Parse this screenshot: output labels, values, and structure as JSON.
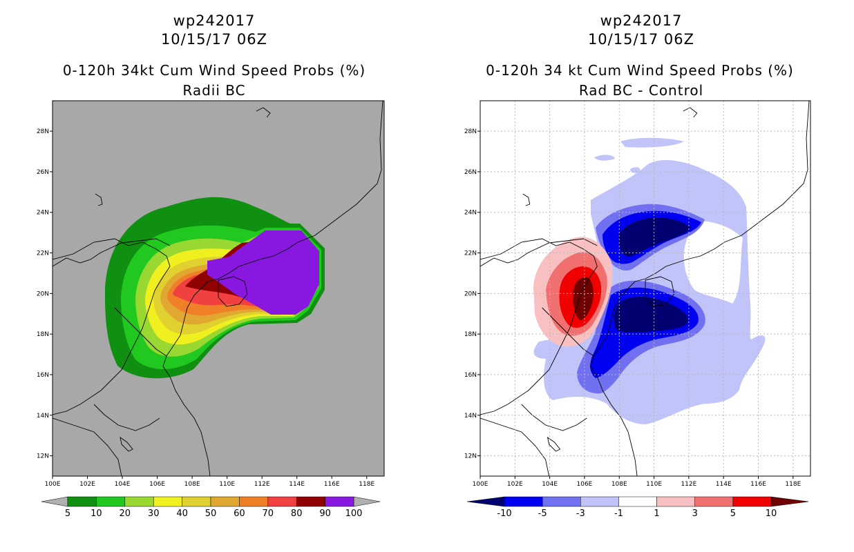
{
  "left_panel": {
    "title_line1": "wp242017",
    "title_line2": "10/15/17 06Z",
    "title_line3": "0-120h 34kt Cum Wind Speed Probs (%)",
    "subtitle": "Radii BC",
    "colorbar": {
      "labels": [
        "5",
        "10",
        "20",
        "30",
        "40",
        "50",
        "60",
        "70",
        "80",
        "90",
        "100"
      ],
      "colors": [
        "#109010",
        "#20c820",
        "#98d830",
        "#f0f020",
        "#e0d030",
        "#e0a830",
        "#f08028",
        "#f04040",
        "#900000",
        "#8818e0"
      ],
      "end_color": "#b0b0b0"
    }
  },
  "right_panel": {
    "title_line1": "wp242017",
    "title_line2": "10/15/17 06Z",
    "title_line3": "0-120h 34 kt Cum Wind Speed Probs (%)",
    "subtitle": "Rad BC - Control",
    "colorbar": {
      "labels": [
        "-10",
        "-5",
        "-3",
        "-1",
        "1",
        "3",
        "5",
        "10"
      ],
      "colors": [
        "#0000f0",
        "#7070f0",
        "#c0c4f8",
        "#ffffff",
        "#f8c0c0",
        "#f07070",
        "#f00000"
      ],
      "end_left": "#000070",
      "end_right": "#700000"
    }
  },
  "axes": {
    "lon_ticks": [
      "100E",
      "102E",
      "104E",
      "106E",
      "108E",
      "110E",
      "112E",
      "114E",
      "116E",
      "118E"
    ],
    "lat_ticks": [
      "28N",
      "26N",
      "24N",
      "22N",
      "20N",
      "18N",
      "16N",
      "14N",
      "12N"
    ]
  },
  "colors": {
    "map_bg_left": "#a8a8a8",
    "grid": "#b8b8b8"
  }
}
